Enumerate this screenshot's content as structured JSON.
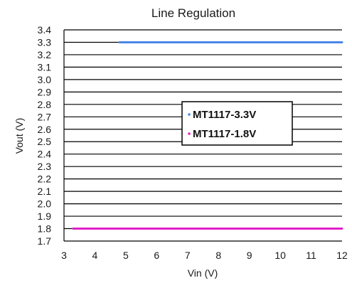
{
  "chart_data": {
    "type": "line",
    "title": "Line Regulation",
    "xlabel": "Vin (V)",
    "ylabel": "Vout (V)",
    "xlim": [
      3,
      12
    ],
    "ylim": [
      1.7,
      3.4
    ],
    "x_ticks": [
      3,
      4,
      5,
      6,
      7,
      8,
      9,
      10,
      11,
      12
    ],
    "y_ticks": [
      1.7,
      1.8,
      1.9,
      2.0,
      2.1,
      2.2,
      2.3,
      2.4,
      2.5,
      2.6,
      2.7,
      2.8,
      2.9,
      3.0,
      3.1,
      3.2,
      3.3,
      3.4
    ],
    "y_tick_labels": [
      "1.7",
      "1.8",
      "1.9",
      "2.0",
      "2.1",
      "2.2",
      "2.3",
      "2.4",
      "2.5",
      "2.6",
      "2.7",
      "2.8",
      "2.9",
      "3.0",
      "3.1",
      "3.2",
      "3.3",
      "3.4"
    ],
    "grid": "horizontal",
    "legend_position": "center-right",
    "series": [
      {
        "name": "MT1117-3.3V",
        "color": "#4a86e8",
        "x": [
          4.8,
          6,
          7,
          8,
          9,
          10,
          11,
          12
        ],
        "y": [
          3.3,
          3.3,
          3.3,
          3.3,
          3.3,
          3.3,
          3.3,
          3.3
        ]
      },
      {
        "name": "MT1117-1.8V",
        "color": "#e020c8",
        "x": [
          3.3,
          4,
          5,
          6,
          7,
          8,
          9,
          10,
          11,
          12
        ],
        "y": [
          1.8,
          1.8,
          1.8,
          1.8,
          1.8,
          1.8,
          1.8,
          1.8,
          1.8,
          1.8
        ]
      }
    ]
  }
}
